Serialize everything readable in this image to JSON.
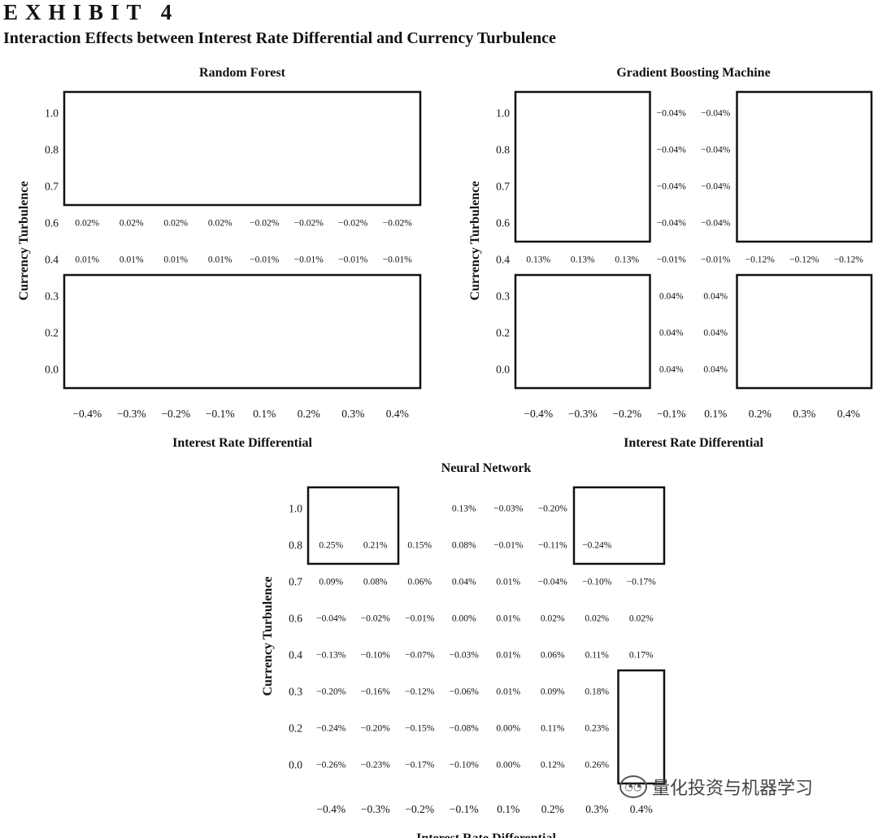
{
  "exhibit": {
    "label": "EXHIBIT 4",
    "title": "Interaction Effects between Interest Rate Differential and Currency Turbulence"
  },
  "watermark": {
    "text": "量化投资与机器学习",
    "icon": "wechat-logo-icon"
  },
  "colors": {
    "text": "#111111",
    "box": "#111111",
    "background": "#ffffff"
  },
  "chart_data": [
    {
      "id": "rf",
      "type": "table",
      "title": "Random Forest",
      "xlabel": "Interest Rate Differential",
      "ylabel": "Currency Turbulence",
      "x_ticks": [
        "−0.4%",
        "−0.3%",
        "−0.2%",
        "−0.1%",
        "0.1%",
        "0.2%",
        "0.3%",
        "0.4%"
      ],
      "y_ticks": [
        "1.0",
        "0.8",
        "0.7",
        "0.6",
        "0.4",
        "0.3",
        "0.2",
        "0.0"
      ],
      "cells": [
        [
          "",
          "",
          "",
          "",
          "",
          "",
          "",
          ""
        ],
        [
          "",
          "",
          "",
          "",
          "",
          "",
          "",
          ""
        ],
        [
          "",
          "",
          "",
          "",
          "",
          "",
          "",
          ""
        ],
        [
          "0.02%",
          "0.02%",
          "0.02%",
          "0.02%",
          "−0.02%",
          "−0.02%",
          "−0.02%",
          "−0.02%"
        ],
        [
          "0.01%",
          "0.01%",
          "0.01%",
          "0.01%",
          "−0.01%",
          "−0.01%",
          "−0.01%",
          "−0.01%"
        ],
        [
          "",
          "",
          "",
          "",
          "",
          "",
          "",
          ""
        ],
        [
          "",
          "",
          "",
          "",
          "",
          "",
          "",
          ""
        ],
        [
          "",
          "",
          "",
          "",
          "",
          "",
          "",
          ""
        ]
      ],
      "boxes": [
        {
          "r0": 0,
          "r1": 2,
          "c0": 0,
          "c1": 7
        },
        {
          "r0": 5,
          "r1": 7,
          "c0": 0,
          "c1": 7
        }
      ]
    },
    {
      "id": "gbm",
      "type": "table",
      "title": "Gradient Boosting Machine",
      "xlabel": "Interest Rate Differential",
      "ylabel": "Currency Turbulence",
      "x_ticks": [
        "−0.4%",
        "−0.3%",
        "−0.2%",
        "−0.1%",
        "0.1%",
        "0.2%",
        "0.3%",
        "0.4%"
      ],
      "y_ticks": [
        "1.0",
        "0.8",
        "0.7",
        "0.6",
        "0.4",
        "0.3",
        "0.2",
        "0.0"
      ],
      "cells": [
        [
          "",
          "",
          "",
          "−0.04%",
          "−0.04%",
          "",
          "",
          ""
        ],
        [
          "",
          "",
          "",
          "−0.04%",
          "−0.04%",
          "",
          "",
          ""
        ],
        [
          "",
          "",
          "",
          "−0.04%",
          "−0.04%",
          "",
          "",
          ""
        ],
        [
          "",
          "",
          "",
          "−0.04%",
          "−0.04%",
          "",
          "",
          ""
        ],
        [
          "0.13%",
          "0.13%",
          "0.13%",
          "−0.01%",
          "−0.01%",
          "−0.12%",
          "−0.12%",
          "−0.12%"
        ],
        [
          "",
          "",
          "",
          "0.04%",
          "0.04%",
          "",
          "",
          ""
        ],
        [
          "",
          "",
          "",
          "0.04%",
          "0.04%",
          "",
          "",
          ""
        ],
        [
          "",
          "",
          "",
          "0.04%",
          "0.04%",
          "",
          "",
          ""
        ]
      ],
      "boxes": [
        {
          "r0": 0,
          "r1": 3,
          "c0": 0,
          "c1": 2
        },
        {
          "r0": 0,
          "r1": 3,
          "c0": 5,
          "c1": 7
        },
        {
          "r0": 5,
          "r1": 7,
          "c0": 0,
          "c1": 2
        },
        {
          "r0": 5,
          "r1": 7,
          "c0": 5,
          "c1": 7
        }
      ]
    },
    {
      "id": "nn",
      "type": "table",
      "title": "Neural Network",
      "xlabel": "Interest Rate Differential",
      "ylabel": "Currency Turbulence",
      "x_ticks": [
        "−0.4%",
        "−0.3%",
        "−0.2%",
        "−0.1%",
        "0.1%",
        "0.2%",
        "0.3%",
        "0.4%"
      ],
      "y_ticks": [
        "1.0",
        "0.8",
        "0.7",
        "0.6",
        "0.4",
        "0.3",
        "0.2",
        "0.0"
      ],
      "cells": [
        [
          "",
          "",
          "",
          "0.13%",
          "−0.03%",
          "−0.20%",
          "",
          ""
        ],
        [
          "0.25%",
          "0.21%",
          "0.15%",
          "0.08%",
          "−0.01%",
          "−0.11%",
          "−0.24%",
          ""
        ],
        [
          "0.09%",
          "0.08%",
          "0.06%",
          "0.04%",
          "0.01%",
          "−0.04%",
          "−0.10%",
          "−0.17%"
        ],
        [
          "−0.04%",
          "−0.02%",
          "−0.01%",
          "0.00%",
          "0.01%",
          "0.02%",
          "0.02%",
          "0.02%"
        ],
        [
          "−0.13%",
          "−0.10%",
          "−0.07%",
          "−0.03%",
          "0.01%",
          "0.06%",
          "0.11%",
          "0.17%"
        ],
        [
          "−0.20%",
          "−0.16%",
          "−0.12%",
          "−0.06%",
          "0.01%",
          "0.09%",
          "0.18%",
          ""
        ],
        [
          "−0.24%",
          "−0.20%",
          "−0.15%",
          "−0.08%",
          "0.00%",
          "0.11%",
          "0.23%",
          ""
        ],
        [
          "−0.26%",
          "−0.23%",
          "−0.17%",
          "−0.10%",
          "0.00%",
          "0.12%",
          "0.26%",
          ""
        ]
      ],
      "boxes": [
        {
          "r0": 0,
          "r1": 1,
          "c0": 0,
          "c1": 1
        },
        {
          "r0": 0,
          "r1": 1,
          "c0": 6,
          "c1": 7
        },
        {
          "r0": 5,
          "r1": 7,
          "c0": 7,
          "c1": 7
        }
      ]
    }
  ]
}
